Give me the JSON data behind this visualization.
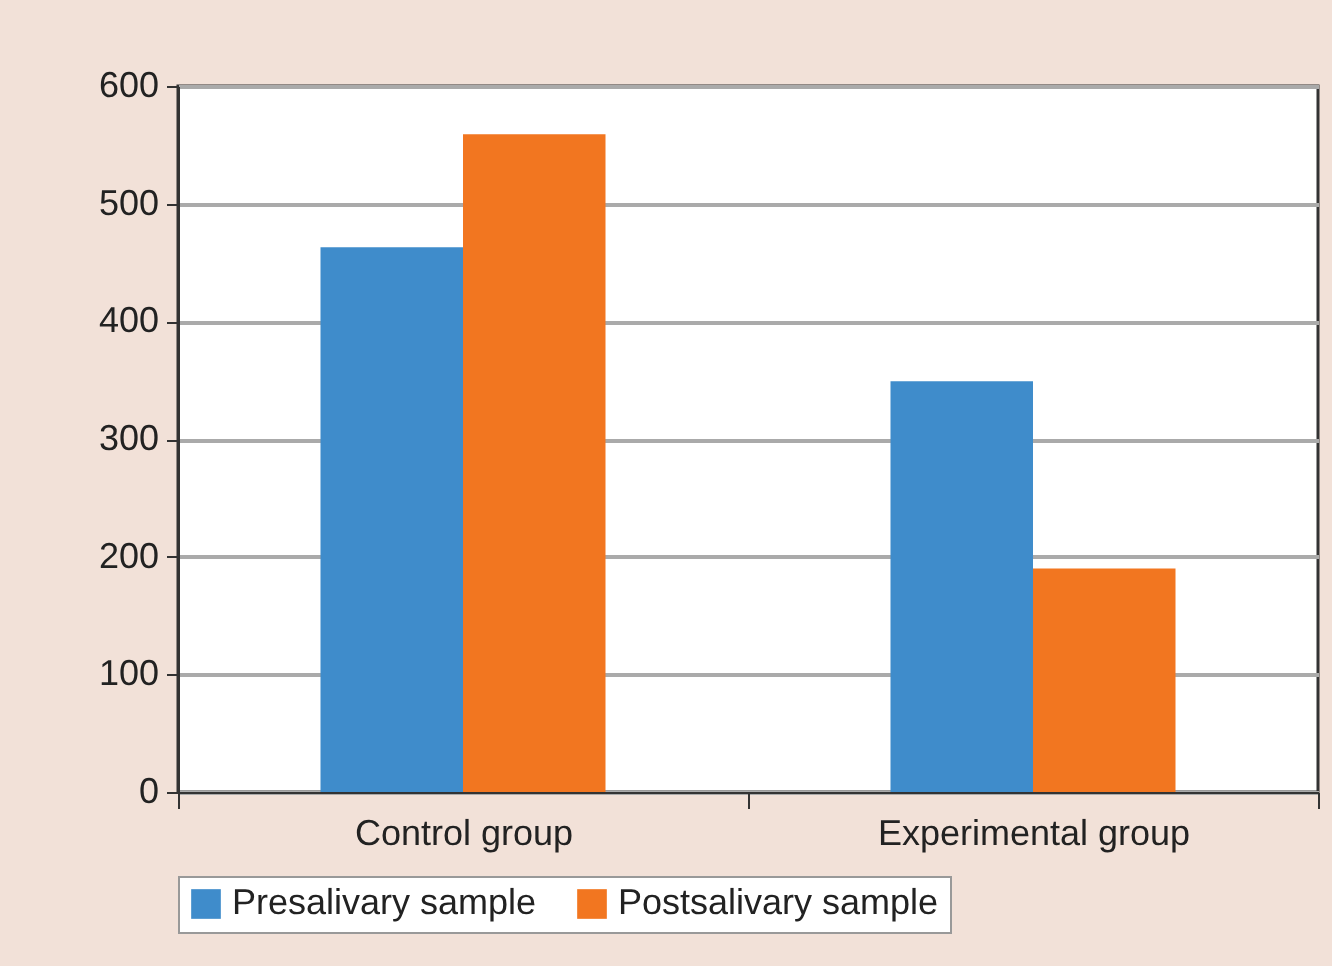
{
  "chart_data": {
    "type": "bar",
    "categories": [
      "Control group",
      "Experimental group"
    ],
    "series": [
      {
        "name": "Presalivary sample",
        "color": "#3f8ccb",
        "values": [
          463,
          349
        ]
      },
      {
        "name": "Postsalivary sample",
        "color": "#f27620",
        "values": [
          559,
          190
        ]
      }
    ],
    "ylim": [
      0,
      600
    ],
    "yticks": [
      0,
      100,
      200,
      300,
      400,
      500,
      600
    ],
    "grid": "y",
    "legend": "bottom"
  }
}
